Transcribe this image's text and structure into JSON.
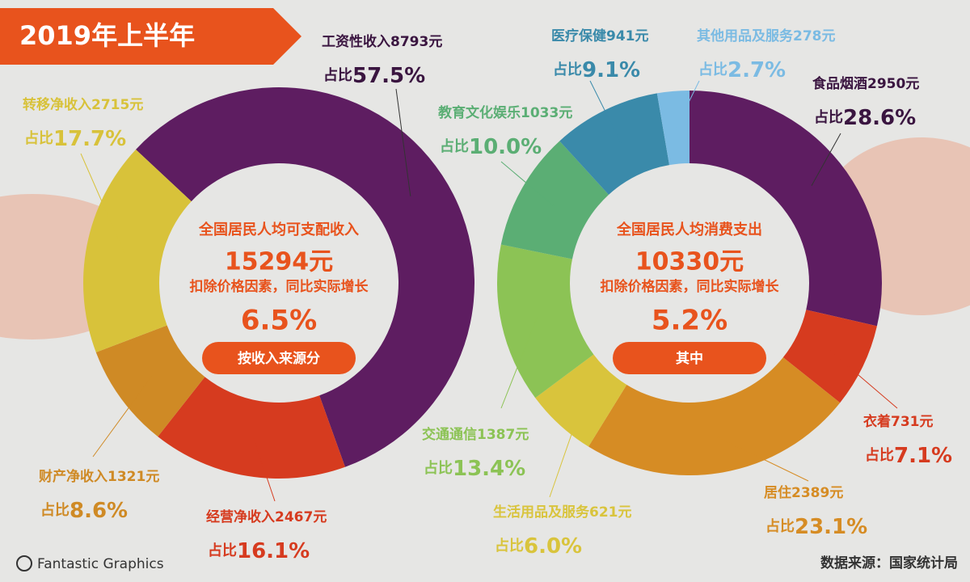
{
  "header": {
    "title": "2019年上半年"
  },
  "chart_data": [
    {
      "type": "pie",
      "title": "全国居民人均可支配收入",
      "total": "15294元",
      "note": "扣除价格因素，同比实际增长",
      "growth": "6.5%",
      "button": "按收入来源分",
      "share_prefix": "占比",
      "categories": [
        "工资性收入",
        "经营净收入",
        "财产净收入",
        "转移净收入"
      ],
      "values": [
        57.5,
        16.1,
        8.6,
        17.7
      ],
      "value_labels": [
        "57.5%",
        "16.1%",
        "8.6%",
        "17.7%"
      ],
      "amounts": [
        8793,
        2467,
        1321,
        2715
      ],
      "amount_labels": [
        "8793元",
        "2467元",
        "1321元",
        "2715元"
      ],
      "colors": [
        "#5e1d61",
        "#d63b1f",
        "#cf8a25",
        "#d8c23a"
      ]
    },
    {
      "type": "pie",
      "title": "全国居民人均消费支出",
      "total": "10330元",
      "note": "扣除价格因素，同比实际增长",
      "growth": "5.2%",
      "button": "其中",
      "share_prefix": "占比",
      "categories": [
        "食品烟酒",
        "衣着",
        "居住",
        "生活用品及服务",
        "交通通信",
        "教育文化娱乐",
        "医疗保健",
        "其他用品及服务"
      ],
      "values": [
        28.6,
        7.1,
        23.1,
        6.0,
        13.4,
        10.0,
        9.1,
        2.7
      ],
      "value_labels": [
        "28.6%",
        "7.1%",
        "23.1%",
        "6.0%",
        "13.4%",
        "10.0%",
        "9.1%",
        "2.7%"
      ],
      "amounts": [
        2950,
        731,
        2389,
        621,
        1387,
        1033,
        941,
        278
      ],
      "amount_labels": [
        "2950元",
        "731元",
        "2389元",
        "621元",
        "1387元",
        "1033元",
        "941元",
        "278元"
      ],
      "colors": [
        "#5e1d61",
        "#d63b1f",
        "#d68c24",
        "#d9c43c",
        "#8cc355",
        "#5bae74",
        "#3a8aaa",
        "#7bbbe3"
      ]
    }
  ],
  "footer": {
    "brand": "Fantastic Graphics",
    "source": "数据来源：国家统计局"
  }
}
